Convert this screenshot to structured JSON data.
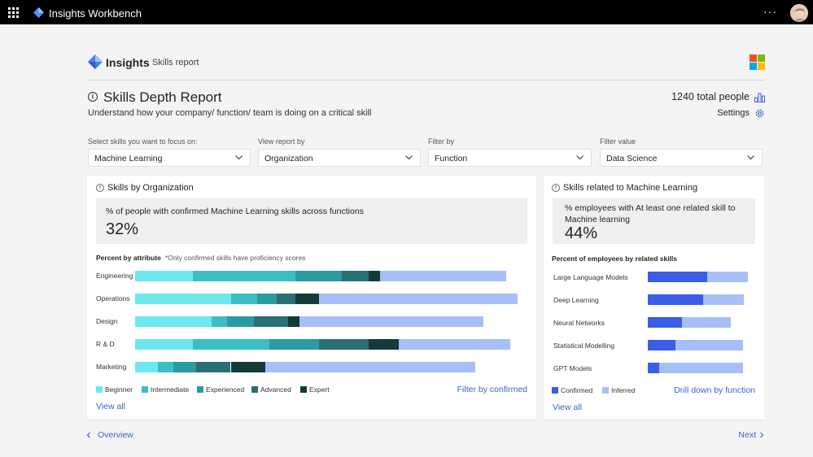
{
  "topbar": {
    "app_title": "Insights Workbench",
    "more_label": "···"
  },
  "brand": {
    "title": "Insights",
    "subtitle": "Skills report"
  },
  "report": {
    "title": "Skills Depth Report",
    "subtitle": "Understand how your company/ function/ team is doing on a critical skill",
    "total_people": "1240 total people",
    "settings_label": "Settings"
  },
  "filters": [
    {
      "label": "Select skills you want to focus on:",
      "value": "Machine Learning"
    },
    {
      "label": "View report by",
      "value": "Organization"
    },
    {
      "label": "Filter by",
      "value": "Function"
    },
    {
      "label": "Filter value",
      "value": "Data Science"
    }
  ],
  "left_card": {
    "title": "Skills by Organization",
    "stat_text": "% of people with confirmed Machine Learning skills across functions",
    "stat_value": "32%",
    "section_label": "Percent by attribute",
    "note": "*Only confirmed skills have proficiency scores",
    "filter_link": "Filter by confirmed",
    "view_all": "View all"
  },
  "right_card": {
    "title": "Skills related to Machine Learning",
    "stat_text": "% employees with At least one related skill to Machine learning",
    "stat_value": "44%",
    "section_label": "Percent of employees by related skills",
    "drill_link": "Drill down by function",
    "view_all": "View all"
  },
  "footer": {
    "prev_label": "Overview",
    "next_label": "Next"
  },
  "colors": {
    "beginner": "#6ee7ee",
    "intermediate": "#3bbfc4",
    "experienced": "#2b9aa2",
    "advanced": "#2a6f73",
    "expert": "#153a3a",
    "remaining": "#a7bff8",
    "confirmed": "#3a5ee6",
    "inferred": "#a7bff8"
  },
  "chart_data": [
    {
      "type": "bar",
      "stacked": true,
      "orientation": "horizontal",
      "categories": [
        "Engineering",
        "Operations",
        "Design",
        "R & D",
        "Marketing"
      ],
      "series": [
        {
          "name": "Beginner",
          "values": [
            15,
            25,
            20,
            15,
            6
          ]
        },
        {
          "name": "Intermediate",
          "values": [
            27,
            7,
            4,
            20,
            4
          ]
        },
        {
          "name": "Experienced",
          "values": [
            12,
            5,
            7,
            13,
            6
          ]
        },
        {
          "name": "Advanced",
          "values": [
            7,
            5,
            9,
            13,
            9
          ]
        },
        {
          "name": "Expert",
          "values": [
            3,
            6,
            3,
            8,
            9
          ]
        }
      ],
      "remaining": [
        33,
        52,
        48,
        29,
        55
      ],
      "xlim": [
        0,
        100
      ]
    },
    {
      "type": "bar",
      "stacked": true,
      "orientation": "horizontal",
      "categories": [
        "Large Language Models",
        "Deep Learning",
        "Neural Networks",
        "Statistical Modelling",
        "GPT Models"
      ],
      "series": [
        {
          "name": "Confirmed",
          "values": [
            59,
            55,
            34,
            28,
            11
          ]
        },
        {
          "name": "Inferred",
          "values": [
            41,
            41,
            49,
            67,
            84
          ]
        }
      ],
      "xlim": [
        0,
        100
      ]
    }
  ],
  "legend_left": [
    "Beginner",
    "Intermediate",
    "Experienced",
    "Advanced",
    "Expert"
  ],
  "legend_right": [
    "Confirmed",
    "Inferred"
  ]
}
